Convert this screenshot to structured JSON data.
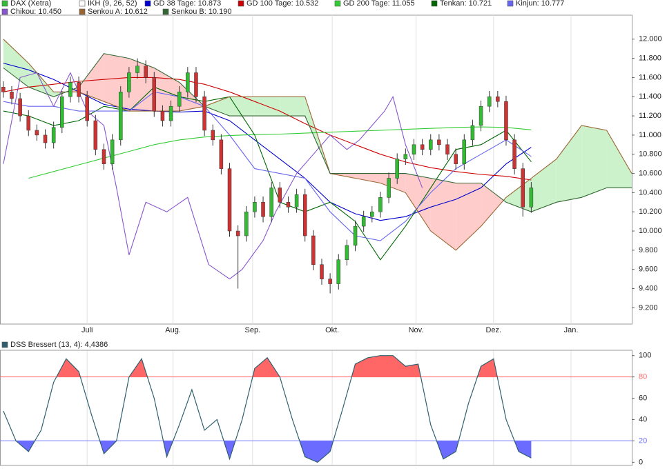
{
  "chart_data": [
    {
      "type": "candlestick",
      "name": "DAX (Xetra)",
      "indicator": "IKH (9, 26, 52)",
      "up_color": "#33bb33",
      "down_color": "#cc3333",
      "cloud_up_color": "#ccf2cc",
      "cloud_down_color": "#ffcccc",
      "xlim": [
        -0.8,
        150
      ],
      "ylim": [
        9030,
        12250
      ],
      "xticks": [
        {
          "value": 20,
          "label": "Juli"
        },
        {
          "value": 40.5,
          "label": "Aug."
        },
        {
          "value": 59.5,
          "label": "Sep."
        },
        {
          "value": 78.5,
          "label": "Okt."
        },
        {
          "value": 98.5,
          "label": "Nov."
        },
        {
          "value": 117,
          "label": "Dez."
        },
        {
          "value": 135.5,
          "label": "Jan."
        }
      ],
      "yticks": [
        {
          "value": 9200,
          "label": "9.200"
        },
        {
          "value": 9400,
          "label": "9.400"
        },
        {
          "value": 9600,
          "label": "9.600"
        },
        {
          "value": 9800,
          "label": "9.800"
        },
        {
          "value": 10000,
          "label": "10.000"
        },
        {
          "value": 10200,
          "label": "10.200"
        },
        {
          "value": 10400,
          "label": "10.400"
        },
        {
          "value": 10600,
          "label": "10.600"
        },
        {
          "value": 10800,
          "label": "10.800"
        },
        {
          "value": 11000,
          "label": "11.000"
        },
        {
          "value": 11200,
          "label": "11.200"
        },
        {
          "value": 11400,
          "label": "11.400"
        },
        {
          "value": 11600,
          "label": "11.600"
        },
        {
          "value": 11800,
          "label": "11.800"
        },
        {
          "value": 12000,
          "label": "12.000"
        }
      ],
      "grid": true,
      "x": [
        0,
        2,
        4,
        6,
        8,
        10,
        12,
        14,
        16,
        18,
        20,
        22,
        24,
        26,
        28,
        30,
        32,
        34,
        36,
        38,
        40,
        42,
        44,
        46,
        48,
        50,
        52,
        54,
        56,
        58,
        60,
        62,
        64,
        66,
        68,
        70,
        72,
        74,
        76,
        78,
        80,
        82,
        84,
        86,
        88,
        90,
        92,
        94,
        96,
        98,
        100,
        102,
        104,
        106,
        108,
        110,
        112,
        114,
        116,
        118,
        120,
        122,
        124,
        126
      ],
      "open": [
        11500,
        11450,
        11380,
        11200,
        11050,
        11000,
        10920,
        11080,
        11400,
        11550,
        11400,
        11150,
        10850,
        10700,
        10950,
        11450,
        11650,
        11720,
        11600,
        11250,
        11150,
        11300,
        11450,
        11650,
        11400,
        11050,
        10950,
        10650,
        10000,
        9950,
        10200,
        10300,
        10150,
        10450,
        10300,
        10250,
        10380,
        9950,
        9650,
        9500,
        9450,
        9700,
        9850,
        10050,
        10150,
        10200,
        10350,
        10550,
        10750,
        10800,
        10900,
        10850,
        10950,
        10900,
        10800,
        10700,
        10950,
        11100,
        11300,
        11400,
        11350,
        10950,
        10650,
        10250
      ],
      "high": [
        11560,
        11510,
        11440,
        11260,
        11110,
        11060,
        11140,
        11460,
        11610,
        11610,
        11460,
        11210,
        10910,
        11010,
        11510,
        11710,
        11800,
        11780,
        11660,
        11310,
        11360,
        11510,
        11710,
        11710,
        11460,
        11110,
        11010,
        10710,
        10060,
        10260,
        10360,
        10360,
        10510,
        10510,
        10360,
        10440,
        10440,
        10010,
        9710,
        9560,
        9760,
        9910,
        10110,
        10210,
        10260,
        10410,
        10610,
        10810,
        10860,
        10960,
        10960,
        11010,
        11010,
        10960,
        10860,
        11010,
        11160,
        11360,
        11460,
        11460,
        11410,
        11010,
        10710,
        10510
      ],
      "low": [
        11390,
        11320,
        11140,
        10990,
        10940,
        10860,
        10860,
        11020,
        11340,
        11340,
        11090,
        10790,
        10640,
        10640,
        10890,
        11390,
        11590,
        11540,
        11190,
        11090,
        11090,
        11240,
        11390,
        11340,
        10990,
        10890,
        10590,
        9940,
        9400,
        9890,
        10140,
        10090,
        10090,
        10240,
        10190,
        10190,
        9890,
        9590,
        9440,
        9350,
        9390,
        9640,
        9790,
        9990,
        10090,
        10140,
        10290,
        10490,
        10690,
        10740,
        10790,
        10790,
        10840,
        10740,
        10640,
        10640,
        10890,
        11040,
        11240,
        11290,
        10890,
        10590,
        10150,
        10190
      ],
      "close": [
        11450,
        11380,
        11200,
        11050,
        11000,
        10920,
        11080,
        11400,
        11550,
        11400,
        11150,
        10850,
        10700,
        10950,
        11450,
        11650,
        11720,
        11600,
        11250,
        11150,
        11300,
        11450,
        11650,
        11400,
        11050,
        10950,
        10650,
        10000,
        9950,
        10200,
        10300,
        10150,
        10450,
        10300,
        10250,
        10380,
        9950,
        9650,
        9500,
        9450,
        9700,
        9850,
        10050,
        10150,
        10200,
        10350,
        10550,
        10750,
        10800,
        10900,
        10850,
        10950,
        10900,
        10800,
        10700,
        10950,
        11100,
        11300,
        11400,
        11350,
        10950,
        10650,
        10250,
        10450
      ],
      "series": [
        {
          "name": "GD 38 Tage: 10.873",
          "color": "#0000cc",
          "x": [
            0,
            6,
            12,
            18,
            24,
            30,
            36,
            42,
            48,
            54,
            60,
            66,
            72,
            78,
            84,
            90,
            96,
            102,
            108,
            114,
            120,
            126
          ],
          "values": [
            11750,
            11680,
            11580,
            11450,
            11320,
            11270,
            11250,
            11240,
            11250,
            11150,
            10950,
            10750,
            10550,
            10300,
            10180,
            10110,
            10150,
            10250,
            10330,
            10450,
            10700,
            10873
          ]
        },
        {
          "name": "GD 100 Tage: 10.532",
          "color": "#cc0000",
          "x": [
            0,
            6,
            12,
            18,
            24,
            30,
            36,
            42,
            48,
            54,
            60,
            66,
            72,
            78,
            84,
            90,
            96,
            102,
            108,
            114,
            120,
            126
          ],
          "values": [
            11450,
            11500,
            11530,
            11560,
            11580,
            11600,
            11600,
            11580,
            11530,
            11450,
            11350,
            11250,
            11120,
            11000,
            10900,
            10800,
            10720,
            10660,
            10620,
            10590,
            10570,
            10532
          ]
        },
        {
          "name": "GD 200 Tage: 11.055",
          "color": "#33cc33",
          "x": [
            6,
            12,
            18,
            24,
            30,
            36,
            42,
            48,
            54,
            60,
            66,
            72,
            78,
            84,
            90,
            96,
            102,
            108,
            114,
            120,
            126
          ],
          "values": [
            10550,
            10620,
            10690,
            10760,
            10830,
            10900,
            10950,
            10980,
            10995,
            11005,
            11010,
            11020,
            11030,
            11040,
            11050,
            11060,
            11070,
            11080,
            11085,
            11080,
            11055
          ]
        },
        {
          "name": "Tenkan: 10.721",
          "color": "#006600",
          "x": [
            0,
            6,
            12,
            18,
            24,
            30,
            36,
            42,
            48,
            54,
            60,
            66,
            72,
            78,
            84,
            90,
            96,
            102,
            108,
            114,
            120,
            126
          ],
          "values": [
            11250,
            11200,
            11100,
            11150,
            11300,
            11250,
            11500,
            11400,
            11350,
            11400,
            11000,
            10300,
            10200,
            10300,
            10100,
            9700,
            10050,
            10450,
            10850,
            10900,
            11050,
            10721
          ]
        },
        {
          "name": "Kinjun: 10.777",
          "color": "#6666ee",
          "x": [
            0,
            6,
            12,
            18,
            24,
            30,
            36,
            42,
            48,
            54,
            60,
            66,
            72,
            78,
            84,
            90,
            96,
            102,
            108,
            114,
            120,
            126
          ],
          "values": [
            11350,
            11300,
            11300,
            11250,
            11250,
            11250,
            11450,
            11400,
            11300,
            11000,
            10650,
            10600,
            10550,
            10200,
            9950,
            9900,
            10100,
            10400,
            10650,
            10800,
            10950,
            10777
          ]
        },
        {
          "name": "Chikou: 10.450",
          "color": "#8855cc",
          "x": [
            0,
            4,
            8,
            12,
            16,
            20,
            24,
            27,
            30,
            34,
            39,
            44,
            49,
            54,
            57,
            62,
            65,
            70,
            73,
            78,
            82,
            85,
            88,
            91,
            93,
            96,
            100
          ],
          "values": [
            10700,
            11600,
            11650,
            11300,
            11650,
            11250,
            11100,
            10450,
            9750,
            10300,
            10200,
            10350,
            9650,
            9500,
            9600,
            9900,
            10200,
            10600,
            10750,
            11000,
            10850,
            10950,
            11100,
            11250,
            11400,
            10900,
            10450
          ]
        },
        {
          "name": "Senkou A: 10.612",
          "color": "#996633",
          "x": [
            0,
            6,
            12,
            18,
            24,
            30,
            36,
            42,
            48,
            54,
            60,
            66,
            72,
            78,
            84,
            90,
            96,
            102,
            108,
            114,
            120,
            126,
            132,
            138,
            144,
            150
          ],
          "values": [
            12000,
            11750,
            11450,
            11450,
            11350,
            11250,
            11250,
            11250,
            11300,
            11400,
            11400,
            11400,
            11400,
            10600,
            10550,
            10500,
            10400,
            10000,
            9800,
            10050,
            10350,
            10550,
            10750,
            11100,
            11050,
            10600
          ]
        },
        {
          "name": "Senkou B: 10.190",
          "color": "#336633",
          "x": [
            0,
            6,
            12,
            18,
            24,
            30,
            36,
            42,
            48,
            54,
            60,
            66,
            72,
            78,
            84,
            90,
            96,
            102,
            108,
            114,
            120,
            126,
            132,
            138,
            144,
            150
          ],
          "values": [
            11700,
            11500,
            11400,
            11500,
            11850,
            11800,
            11700,
            11550,
            11300,
            11200,
            11200,
            11200,
            11200,
            10600,
            10600,
            10600,
            10600,
            10550,
            10500,
            10500,
            10300,
            10200,
            10300,
            10350,
            10450,
            10450
          ]
        }
      ]
    },
    {
      "type": "oscillator",
      "name": "DSS Bressert (13, 4): 4,4386",
      "color": "#2f5f6f",
      "upper": 80,
      "upper_color": "#ff6666",
      "lower": 20,
      "lower_color": "#6b6bff",
      "xlim": [
        -0.8,
        150
      ],
      "ylim": [
        -3,
        105
      ],
      "yticks": [
        0,
        20,
        40,
        60,
        80,
        100
      ],
      "x": [
        0,
        3,
        6,
        9,
        12,
        15,
        18,
        21,
        24,
        27,
        30,
        33,
        36,
        39,
        42,
        45,
        48,
        51,
        54,
        57,
        60,
        63,
        66,
        69,
        72,
        75,
        78,
        81,
        84,
        87,
        90,
        93,
        96,
        99,
        102,
        105,
        108,
        111,
        114,
        117,
        120,
        123,
        126
      ],
      "values": [
        48,
        20,
        10,
        30,
        75,
        97,
        85,
        45,
        8,
        20,
        80,
        97,
        60,
        5,
        35,
        68,
        30,
        40,
        3,
        40,
        88,
        98,
        80,
        40,
        5,
        0,
        10,
        50,
        92,
        98,
        100,
        100,
        90,
        92,
        35,
        3,
        10,
        55,
        90,
        97,
        40,
        10,
        4
      ]
    }
  ]
}
